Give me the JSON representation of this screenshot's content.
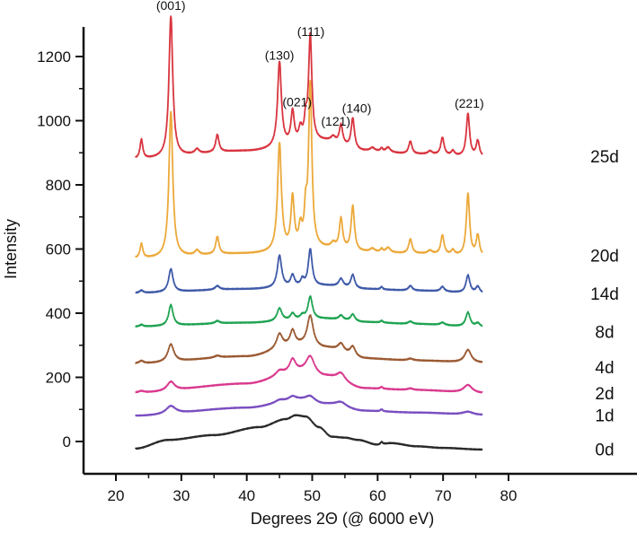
{
  "chart_data": {
    "type": "line",
    "title": "",
    "xlabel": "Degrees 2Θ (@ 6000 eV)",
    "ylabel": "Intensity",
    "xlim": [
      15,
      85
    ],
    "ylim": [
      -100,
      1300
    ],
    "xticks": [
      20,
      30,
      40,
      50,
      60,
      70,
      80
    ],
    "xticks_minor": [
      25,
      35,
      45,
      55,
      65,
      75
    ],
    "yticks": [
      0,
      200,
      400,
      600,
      800,
      1000,
      1200
    ],
    "yticks_minor": [
      100,
      300,
      500,
      700,
      900,
      1100
    ],
    "grid": false,
    "legend": "inline-right",
    "series": [
      {
        "name": "25d",
        "color": "#d9353f",
        "baseline": [
          [
            23,
            880
          ],
          [
            40,
            905
          ],
          [
            52,
            935
          ],
          [
            58,
            905
          ],
          [
            66,
            895
          ],
          [
            76,
            885
          ]
        ],
        "peaks": [
          [
            23.9,
            60,
            0.25
          ],
          [
            28.4,
            440,
            0.35
          ],
          [
            32.4,
            15,
            0.4
          ],
          [
            35.5,
            55,
            0.3
          ],
          [
            45.0,
            265,
            0.35
          ],
          [
            47.0,
            100,
            0.3
          ],
          [
            48.2,
            40,
            0.3
          ],
          [
            49.0,
            60,
            0.25
          ],
          [
            49.7,
            330,
            0.3
          ],
          [
            53.2,
            15,
            0.4
          ],
          [
            54.4,
            60,
            0.3
          ],
          [
            56.2,
            95,
            0.3
          ],
          [
            59.2,
            10,
            0.4
          ],
          [
            60.6,
            10,
            0.2
          ],
          [
            61.6,
            15,
            0.4
          ],
          [
            65.0,
            40,
            0.3
          ],
          [
            68.0,
            10,
            0.4
          ],
          [
            69.9,
            55,
            0.3
          ],
          [
            71.5,
            15,
            0.3
          ],
          [
            73.8,
            135,
            0.3
          ],
          [
            75.3,
            50,
            0.3
          ]
        ]
      },
      {
        "name": "20d",
        "color": "#eca93a",
        "baseline": [
          [
            23,
            570
          ],
          [
            40,
            585
          ],
          [
            52,
            600
          ],
          [
            58,
            590
          ],
          [
            66,
            585
          ],
          [
            76,
            575
          ]
        ],
        "peaks": [
          [
            23.9,
            45,
            0.25
          ],
          [
            28.4,
            455,
            0.35
          ],
          [
            32.4,
            15,
            0.4
          ],
          [
            35.5,
            55,
            0.3
          ],
          [
            45.0,
            335,
            0.35
          ],
          [
            47.0,
            160,
            0.3
          ],
          [
            48.2,
            60,
            0.3
          ],
          [
            49.0,
            100,
            0.25
          ],
          [
            49.7,
            510,
            0.3
          ],
          [
            53.2,
            15,
            0.4
          ],
          [
            54.4,
            95,
            0.3
          ],
          [
            56.2,
            140,
            0.3
          ],
          [
            59.2,
            10,
            0.4
          ],
          [
            60.6,
            10,
            0.2
          ],
          [
            61.6,
            15,
            0.4
          ],
          [
            65.0,
            45,
            0.3
          ],
          [
            68.0,
            10,
            0.4
          ],
          [
            69.9,
            60,
            0.3
          ],
          [
            71.5,
            15,
            0.3
          ],
          [
            73.8,
            195,
            0.3
          ],
          [
            75.3,
            65,
            0.3
          ]
        ]
      },
      {
        "name": "14d",
        "color": "#3f5aa9",
        "baseline": [
          [
            23,
            463
          ],
          [
            40,
            475
          ],
          [
            52,
            485
          ],
          [
            58,
            475
          ],
          [
            66,
            470
          ],
          [
            76,
            462
          ]
        ],
        "peaks": [
          [
            23.9,
            8,
            0.3
          ],
          [
            28.4,
            72,
            0.4
          ],
          [
            35.5,
            12,
            0.4
          ],
          [
            45.0,
            100,
            0.4
          ],
          [
            47.0,
            35,
            0.35
          ],
          [
            48.5,
            20,
            0.3
          ],
          [
            49.7,
            115,
            0.35
          ],
          [
            54.4,
            25,
            0.4
          ],
          [
            56.2,
            42,
            0.35
          ],
          [
            60.6,
            8,
            0.2
          ],
          [
            65.0,
            15,
            0.35
          ],
          [
            69.9,
            15,
            0.35
          ],
          [
            73.8,
            55,
            0.35
          ],
          [
            75.3,
            20,
            0.35
          ]
        ]
      },
      {
        "name": "8d",
        "color": "#1fa352",
        "baseline": [
          [
            23,
            358
          ],
          [
            40,
            370
          ],
          [
            52,
            382
          ],
          [
            58,
            372
          ],
          [
            66,
            366
          ],
          [
            76,
            356
          ]
        ],
        "peaks": [
          [
            23.9,
            6,
            0.3
          ],
          [
            28.4,
            65,
            0.4
          ],
          [
            35.5,
            8,
            0.4
          ],
          [
            45.0,
            40,
            0.45
          ],
          [
            47.0,
            20,
            0.4
          ],
          [
            48.5,
            12,
            0.4
          ],
          [
            49.7,
            70,
            0.4
          ],
          [
            54.4,
            14,
            0.4
          ],
          [
            56.2,
            22,
            0.4
          ],
          [
            60.6,
            6,
            0.2
          ],
          [
            65.0,
            8,
            0.4
          ],
          [
            69.9,
            8,
            0.4
          ],
          [
            73.8,
            45,
            0.4
          ],
          [
            75.3,
            12,
            0.4
          ]
        ]
      },
      {
        "name": "4d",
        "color": "#9b5a32",
        "baseline": [
          [
            23,
            243
          ],
          [
            40,
            265
          ],
          [
            48,
            300
          ],
          [
            52,
            290
          ],
          [
            58,
            258
          ],
          [
            66,
            252
          ],
          [
            76,
            245
          ]
        ],
        "peaks": [
          [
            23.9,
            8,
            0.4
          ],
          [
            28.4,
            55,
            0.55
          ],
          [
            35.5,
            6,
            0.5
          ],
          [
            45.0,
            45,
            0.55
          ],
          [
            47.0,
            45,
            0.45
          ],
          [
            49.7,
            95,
            0.55
          ],
          [
            54.4,
            25,
            0.55
          ],
          [
            56.2,
            30,
            0.5
          ],
          [
            65.0,
            6,
            0.5
          ],
          [
            73.8,
            40,
            0.6
          ]
        ]
      },
      {
        "name": "2d",
        "color": "#d93a8f",
        "baseline": [
          [
            23,
            152
          ],
          [
            40,
            180
          ],
          [
            48,
            215
          ],
          [
            52,
            200
          ],
          [
            58,
            165
          ],
          [
            66,
            160
          ],
          [
            76,
            150
          ]
        ],
        "peaks": [
          [
            23.9,
            5,
            0.5
          ],
          [
            28.4,
            28,
            0.7
          ],
          [
            45.0,
            15,
            0.7
          ],
          [
            47.0,
            40,
            0.55
          ],
          [
            49.7,
            55,
            0.8
          ],
          [
            54.4,
            25,
            0.8
          ],
          [
            60.6,
            6,
            0.2
          ],
          [
            65.0,
            5,
            0.5
          ],
          [
            73.8,
            25,
            0.8
          ]
        ]
      },
      {
        "name": "1d",
        "color": "#7a4ec0",
        "baseline": [
          [
            23,
            80
          ],
          [
            40,
            105
          ],
          [
            48,
            128
          ],
          [
            52,
            115
          ],
          [
            58,
            95
          ],
          [
            66,
            90
          ],
          [
            76,
            82
          ]
        ],
        "peaks": [
          [
            28.4,
            25,
            0.9
          ],
          [
            45.0,
            8,
            0.8
          ],
          [
            47.0,
            12,
            0.7
          ],
          [
            49.7,
            18,
            0.9
          ],
          [
            54.4,
            15,
            1.0
          ],
          [
            60.6,
            6,
            0.2
          ],
          [
            73.8,
            10,
            1.0
          ]
        ]
      },
      {
        "name": "0d",
        "color": "#2a2a2a",
        "baseline": [
          [
            23,
            -22
          ],
          [
            28,
            5
          ],
          [
            35,
            20
          ],
          [
            42,
            45
          ],
          [
            46,
            70
          ],
          [
            47.5,
            82
          ],
          [
            49,
            78
          ],
          [
            51,
            45
          ],
          [
            53,
            15
          ],
          [
            55,
            12
          ],
          [
            57,
            5
          ],
          [
            60,
            -10
          ],
          [
            62,
            -5
          ],
          [
            66,
            -15
          ],
          [
            70,
            -20
          ],
          [
            76,
            -25
          ]
        ],
        "peaks": [
          [
            60.6,
            8,
            0.2
          ]
        ]
      }
    ],
    "annotations": [
      {
        "text": "(001)",
        "x": 28.4,
        "y": 1345
      },
      {
        "text": "(130)",
        "x": 45.0,
        "y": 1190
      },
      {
        "text": "(111)",
        "x": 49.8,
        "y": 1265
      },
      {
        "text": "(021)",
        "x": 47.7,
        "y": 1045
      },
      {
        "text": "(121)",
        "x": 53.6,
        "y": 985
      },
      {
        "text": "(140)",
        "x": 56.8,
        "y": 1025
      },
      {
        "text": "(221)",
        "x": 74.0,
        "y": 1040
      }
    ],
    "series_labels": [
      {
        "name": "25d",
        "y": 890
      },
      {
        "name": "20d",
        "y": 580
      },
      {
        "name": "14d",
        "y": 462
      },
      {
        "name": "8d",
        "y": 342
      },
      {
        "name": "4d",
        "y": 232
      },
      {
        "name": "2d",
        "y": 151
      },
      {
        "name": "1d",
        "y": 82
      },
      {
        "name": "0d",
        "y": -24
      }
    ]
  }
}
